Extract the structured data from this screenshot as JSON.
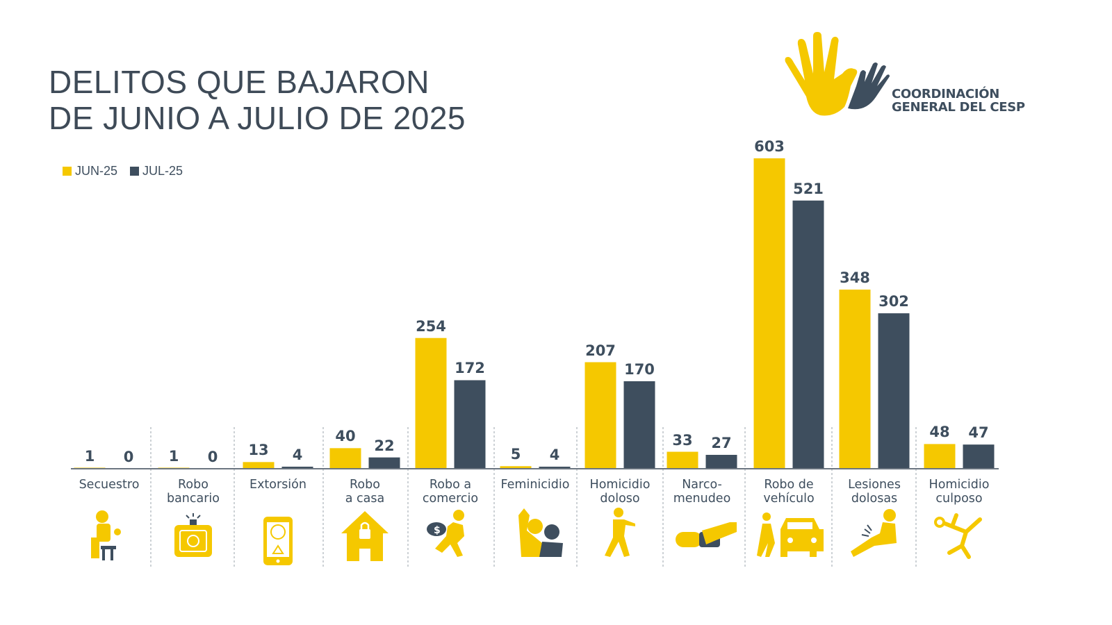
{
  "title_lines": [
    "DELITOS QUE BAJARON",
    "DE JUNIO A JULIO DE 2025"
  ],
  "logo": {
    "line1": "COORDINACIÓN",
    "line2": "GENERAL DEL CESP"
  },
  "colors": {
    "jun": "#F5C800",
    "jul": "#3E4E5E",
    "text": "#3E4E5E"
  },
  "chart_data": {
    "type": "bar",
    "title": "DELITOS QUE BAJARON DE JUNIO A JULIO DE 2025",
    "xlabel": "",
    "ylabel": "",
    "ylim": [
      0,
      603
    ],
    "grid": false,
    "legend_position": "top-left",
    "categories": [
      "Secuestro",
      "Robo\nbancario",
      "Extorsión",
      "Robo\na casa",
      "Robo a\ncomercio",
      "Feminicidio",
      "Homicidio\ndoloso",
      "Narco-\nmenudeo",
      "Robo de\nvehículo",
      "Lesiones\ndolosas",
      "Homicidio\nculposo"
    ],
    "icons": [
      "kidnapped-person-icon",
      "bank-safe-alarm-icon",
      "phone-extortion-icon",
      "house-lock-icon",
      "thief-running-money-icon",
      "femicide-violence-icon",
      "shooter-icon",
      "drug-pill-hand-icon",
      "car-theft-icon",
      "injured-person-icon",
      "fallen-body-icon"
    ],
    "series": [
      {
        "name": "JUN-25",
        "color": "#F5C800",
        "values": [
          1,
          1,
          13,
          40,
          254,
          5,
          207,
          33,
          603,
          348,
          48
        ]
      },
      {
        "name": "JUL-25",
        "color": "#3E4E5E",
        "values": [
          0,
          0,
          4,
          22,
          172,
          4,
          170,
          27,
          521,
          302,
          47
        ]
      }
    ]
  }
}
